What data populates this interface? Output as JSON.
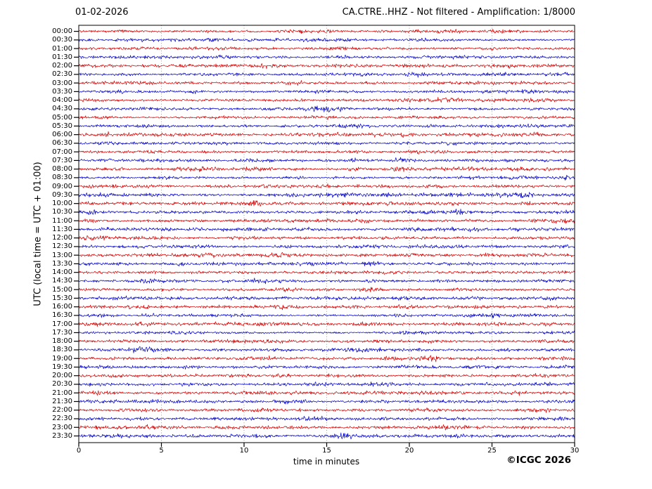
{
  "header": {
    "date_title": "01-02-2026",
    "station_title": "CA.CTRE..HHZ - Not filtered - Amplification: 1/8000"
  },
  "axes": {
    "y_axis_label": "UTC (local time = UTC + 01:00)",
    "x_axis_label": "time in minutes",
    "x_ticks": [
      0,
      5,
      10,
      15,
      20,
      25,
      30
    ]
  },
  "footer": {
    "copyright": "©ICGC 2026"
  },
  "colors": {
    "trace_red": "#d40000",
    "trace_blue": "#0000c8",
    "grid": "#888888",
    "axis": "#000000",
    "background": "#ffffff",
    "text": "#000000"
  },
  "chart_data": {
    "type": "line",
    "subtype": "helicorder-dayplot",
    "date": "01-02-2026",
    "title": "CA.CTRE..HHZ - Not filtered - Amplification: 1/8000",
    "xlabel": "time in minutes",
    "ylabel": "UTC (local time = UTC + 01:00)",
    "xlim": [
      0,
      30
    ],
    "x_ticks": [
      0,
      5,
      10,
      15,
      20,
      25,
      30
    ],
    "minutes_per_row": 30,
    "grid": "vertical dotted gridlines every 5 minutes",
    "legend": "none",
    "content": "continuous low-amplitude background seismic noise on every half-hour trace; no distinct large events",
    "rows": [
      {
        "start_time": "00:00",
        "color": "red",
        "rel_amplitude": 1.0
      },
      {
        "start_time": "00:30",
        "color": "blue",
        "rel_amplitude": 1.0
      },
      {
        "start_time": "01:00",
        "color": "red",
        "rel_amplitude": 1.0
      },
      {
        "start_time": "01:30",
        "color": "blue",
        "rel_amplitude": 1.0
      },
      {
        "start_time": "02:00",
        "color": "red",
        "rel_amplitude": 1.15
      },
      {
        "start_time": "02:30",
        "color": "blue",
        "rel_amplitude": 1.0
      },
      {
        "start_time": "03:00",
        "color": "red",
        "rel_amplitude": 1.0
      },
      {
        "start_time": "03:30",
        "color": "blue",
        "rel_amplitude": 1.0
      },
      {
        "start_time": "04:00",
        "color": "red",
        "rel_amplitude": 1.05
      },
      {
        "start_time": "04:30",
        "color": "blue",
        "rel_amplitude": 1.0
      },
      {
        "start_time": "05:00",
        "color": "red",
        "rel_amplitude": 1.0
      },
      {
        "start_time": "05:30",
        "color": "blue",
        "rel_amplitude": 1.0
      },
      {
        "start_time": "06:00",
        "color": "red",
        "rel_amplitude": 1.0
      },
      {
        "start_time": "06:30",
        "color": "blue",
        "rel_amplitude": 1.0
      },
      {
        "start_time": "07:00",
        "color": "red",
        "rel_amplitude": 1.0
      },
      {
        "start_time": "07:30",
        "color": "blue",
        "rel_amplitude": 1.0
      },
      {
        "start_time": "08:00",
        "color": "red",
        "rel_amplitude": 1.0
      },
      {
        "start_time": "08:30",
        "color": "blue",
        "rel_amplitude": 1.0
      },
      {
        "start_time": "09:00",
        "color": "red",
        "rel_amplitude": 1.0
      },
      {
        "start_time": "09:30",
        "color": "blue",
        "rel_amplitude": 1.1
      },
      {
        "start_time": "10:00",
        "color": "red",
        "rel_amplitude": 1.0
      },
      {
        "start_time": "10:30",
        "color": "blue",
        "rel_amplitude": 1.0
      },
      {
        "start_time": "11:00",
        "color": "red",
        "rel_amplitude": 1.0
      },
      {
        "start_time": "11:30",
        "color": "blue",
        "rel_amplitude": 1.1
      },
      {
        "start_time": "12:00",
        "color": "red",
        "rel_amplitude": 1.0
      },
      {
        "start_time": "12:30",
        "color": "blue",
        "rel_amplitude": 1.0
      },
      {
        "start_time": "13:00",
        "color": "red",
        "rel_amplitude": 1.05
      },
      {
        "start_time": "13:30",
        "color": "blue",
        "rel_amplitude": 1.0
      },
      {
        "start_time": "14:00",
        "color": "red",
        "rel_amplitude": 1.0
      },
      {
        "start_time": "14:30",
        "color": "blue",
        "rel_amplitude": 1.0
      },
      {
        "start_time": "15:00",
        "color": "red",
        "rel_amplitude": 1.0
      },
      {
        "start_time": "15:30",
        "color": "blue",
        "rel_amplitude": 1.0
      },
      {
        "start_time": "16:00",
        "color": "red",
        "rel_amplitude": 1.0
      },
      {
        "start_time": "16:30",
        "color": "blue",
        "rel_amplitude": 1.0
      },
      {
        "start_time": "17:00",
        "color": "red",
        "rel_amplitude": 1.1
      },
      {
        "start_time": "17:30",
        "color": "blue",
        "rel_amplitude": 1.0
      },
      {
        "start_time": "18:00",
        "color": "red",
        "rel_amplitude": 1.0
      },
      {
        "start_time": "18:30",
        "color": "blue",
        "rel_amplitude": 1.0
      },
      {
        "start_time": "19:00",
        "color": "red",
        "rel_amplitude": 1.05
      },
      {
        "start_time": "19:30",
        "color": "blue",
        "rel_amplitude": 1.1
      },
      {
        "start_time": "20:00",
        "color": "red",
        "rel_amplitude": 1.0
      },
      {
        "start_time": "20:30",
        "color": "blue",
        "rel_amplitude": 1.05
      },
      {
        "start_time": "21:00",
        "color": "red",
        "rel_amplitude": 1.05
      },
      {
        "start_time": "21:30",
        "color": "blue",
        "rel_amplitude": 1.0
      },
      {
        "start_time": "22:00",
        "color": "red",
        "rel_amplitude": 1.0
      },
      {
        "start_time": "22:30",
        "color": "blue",
        "rel_amplitude": 1.0
      },
      {
        "start_time": "23:00",
        "color": "red",
        "rel_amplitude": 1.05
      },
      {
        "start_time": "23:30",
        "color": "blue",
        "rel_amplitude": 1.0
      }
    ]
  }
}
